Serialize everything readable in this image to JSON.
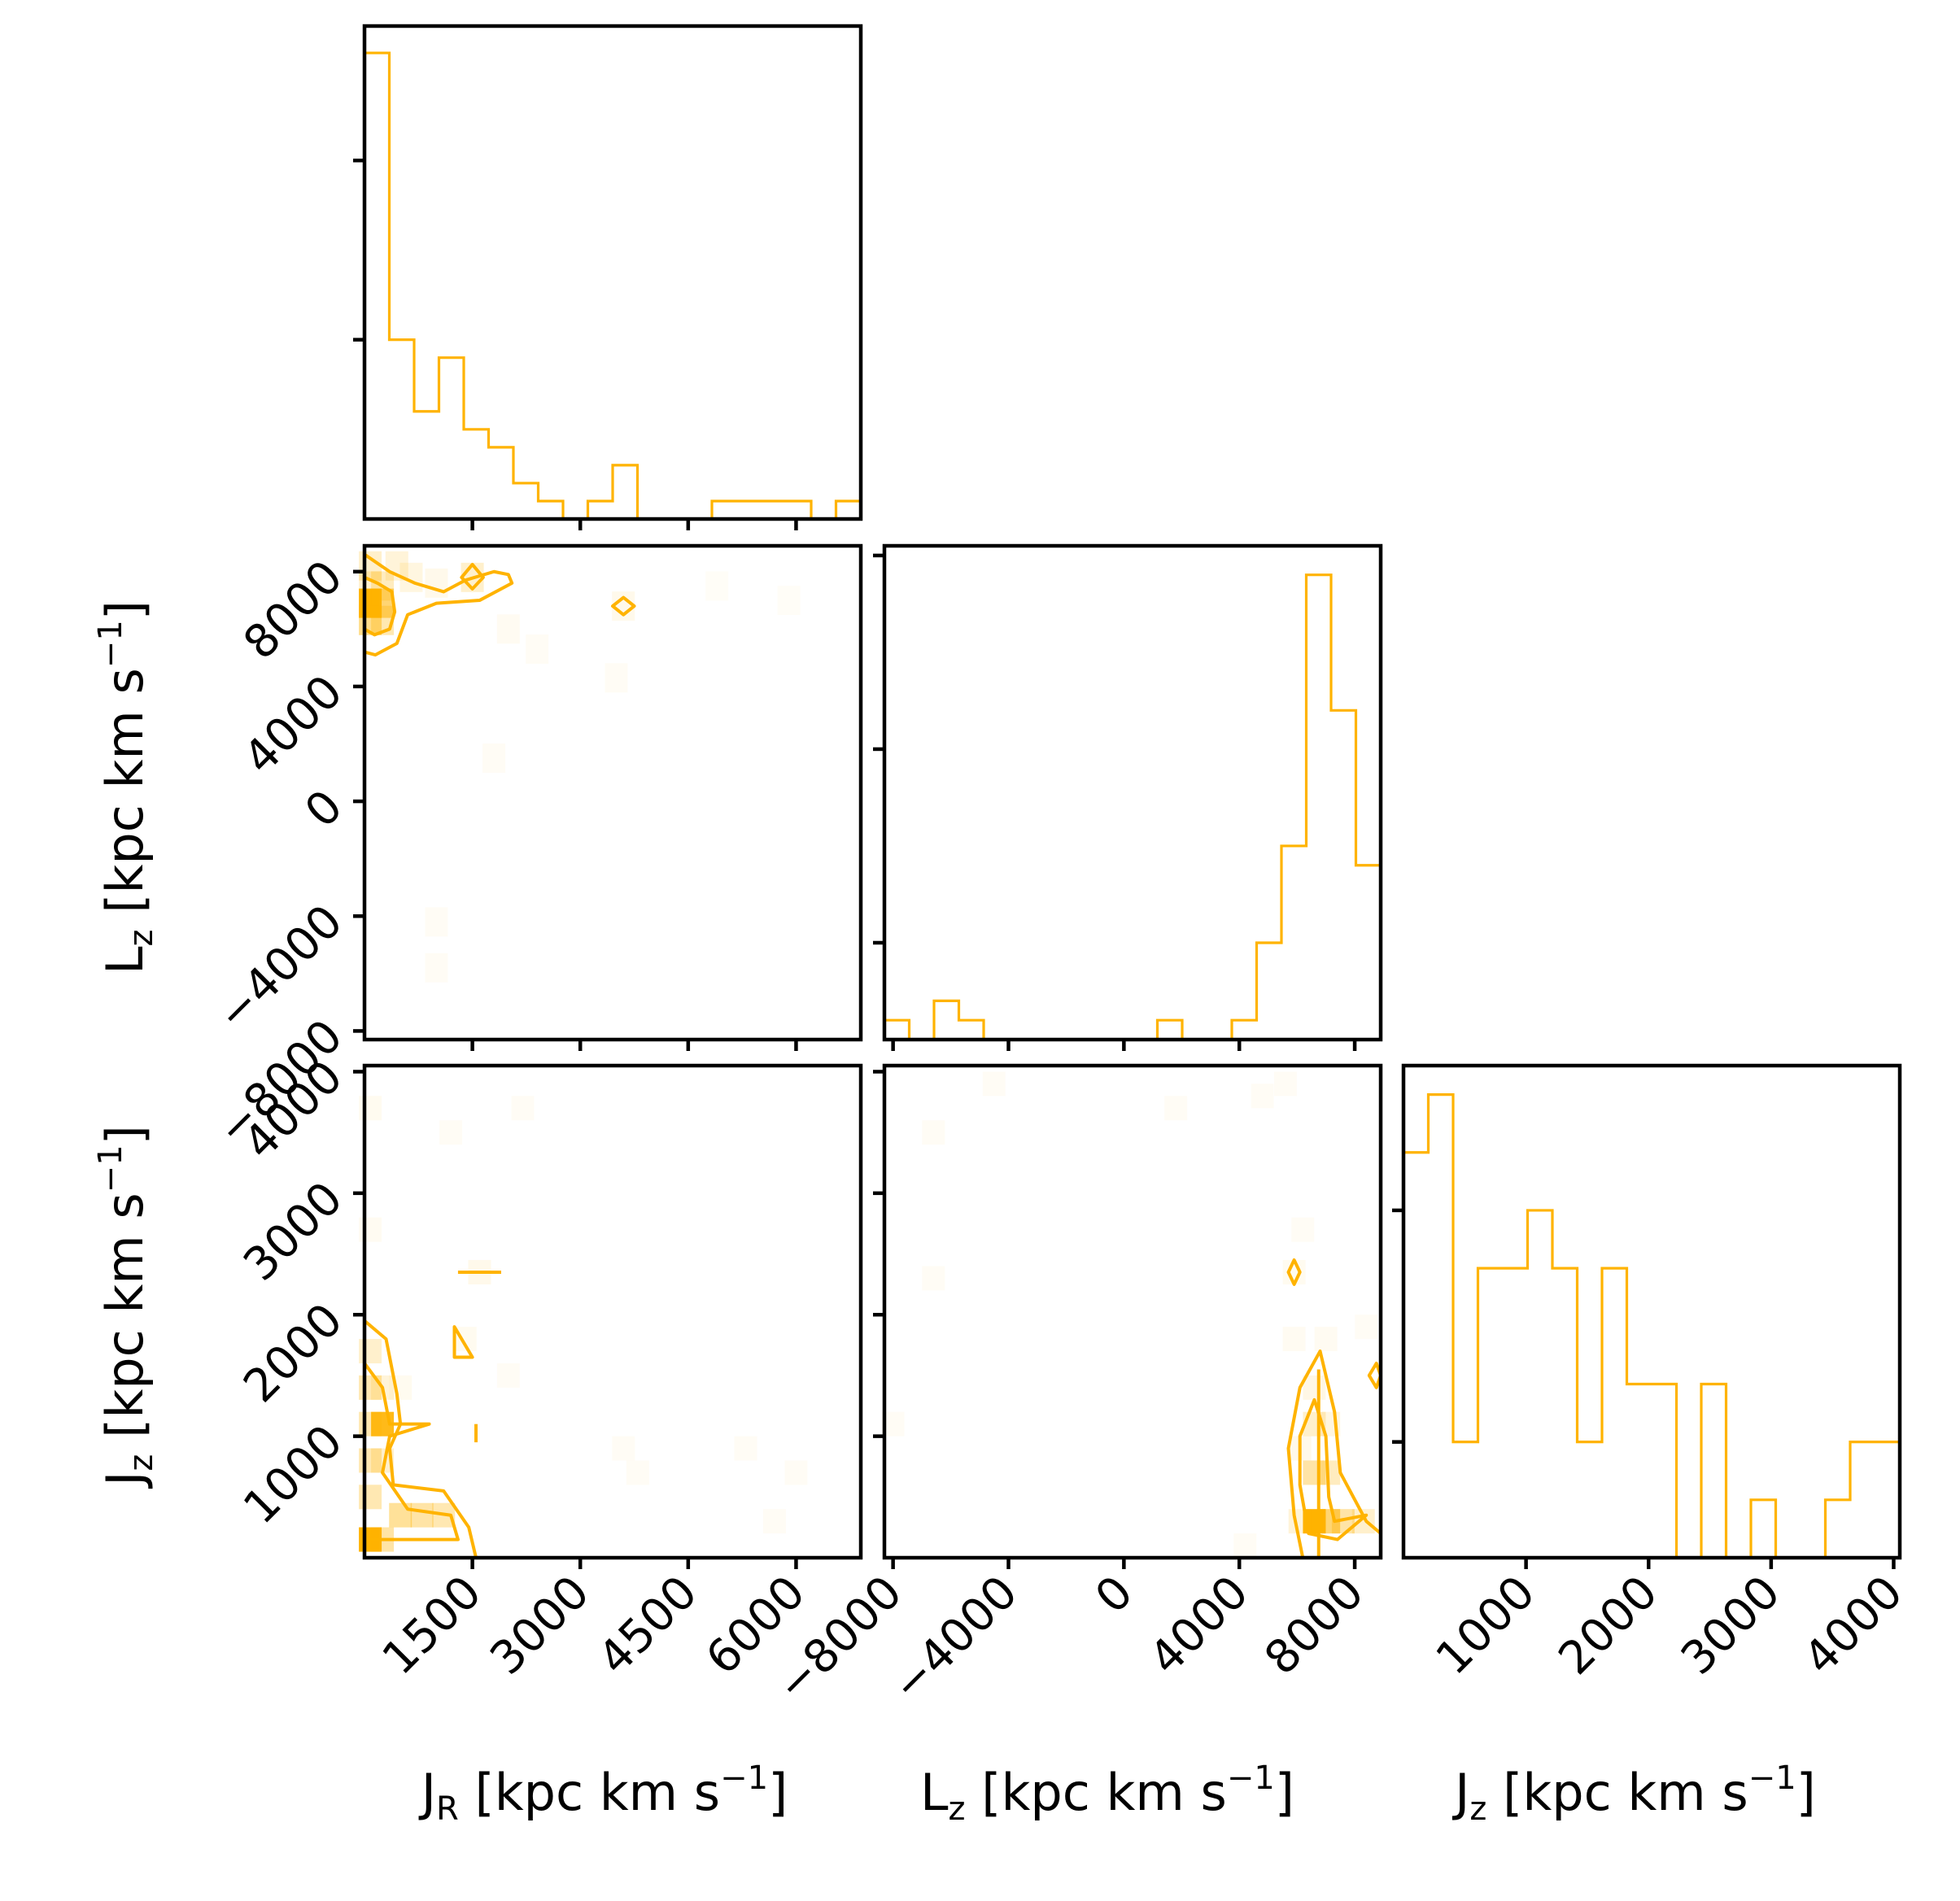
{
  "colors": {
    "series": "#ffb300",
    "axis": "#000000",
    "background": "#ffffff"
  },
  "chart_data": [
    {
      "type": "histogram",
      "variable": "J_R",
      "xlim": [
        0,
        6900
      ],
      "bin_edges": [
        0,
        345,
        690,
        1035,
        1380,
        1725,
        2070,
        2415,
        2760,
        3105,
        3450,
        3795,
        4140,
        4485,
        4830,
        5175,
        5520,
        5865,
        6210,
        6555,
        6900
      ],
      "counts": [
        26,
        10,
        6,
        9,
        5,
        4,
        2,
        1,
        0,
        1,
        3,
        0,
        0,
        0,
        1,
        1,
        1,
        1,
        0,
        1
      ],
      "ylim": [
        0,
        27.5
      ]
    },
    {
      "type": "histogram",
      "variable": "L_z",
      "xlim": [
        -8300,
        8900
      ],
      "bin_edges": [
        -8300,
        -7440,
        -6580,
        -5720,
        -4860,
        -4000,
        -3140,
        -2280,
        -1420,
        -560,
        300,
        1160,
        2020,
        2880,
        3740,
        4600,
        5460,
        6320,
        7180,
        8040,
        8900
      ],
      "counts": [
        1,
        0,
        2,
        1,
        0,
        0,
        0,
        0,
        0,
        0,
        0,
        1,
        0,
        0,
        1,
        5,
        10,
        24,
        17,
        9
      ],
      "ylim": [
        0,
        25.5
      ]
    },
    {
      "type": "histogram",
      "variable": "J_z",
      "xlim": [
        0,
        4050
      ],
      "bin_edges": [
        0,
        202.5,
        405,
        607.5,
        810,
        1012.5,
        1215,
        1417.5,
        1620,
        1822.5,
        2025,
        2227.5,
        2430,
        2632.5,
        2835,
        3037.5,
        3240,
        3442.5,
        3645,
        3847.5,
        4050
      ],
      "counts": [
        7,
        8,
        2,
        5,
        5,
        6,
        5,
        2,
        5,
        3,
        3,
        0,
        3,
        0,
        1,
        0,
        0,
        1,
        2,
        2
      ],
      "ylim": [
        0,
        8.5
      ]
    },
    {
      "type": "heatmap",
      "x": "J_R",
      "y": "L_z",
      "xlim": [
        0,
        6900
      ],
      "ylim": [
        -8300,
        8900
      ],
      "peak": {
        "x": 150,
        "y": 6900
      },
      "secondary_peaks": [
        {
          "x": 1500,
          "y": 7800
        },
        {
          "x": 3600,
          "y": 6800
        }
      ]
    },
    {
      "type": "heatmap",
      "x": "J_R",
      "y": "J_z",
      "xlim": [
        0,
        6900
      ],
      "ylim": [
        0,
        4050
      ],
      "peak": {
        "x": 150,
        "y": 150
      },
      "secondary_peaks": [
        {
          "x": 500,
          "y": 1100
        },
        {
          "x": 1400,
          "y": 1800
        }
      ]
    },
    {
      "type": "heatmap",
      "x": "L_z",
      "y": "J_z",
      "xlim": [
        -8300,
        8900
      ],
      "ylim": [
        0,
        4050
      ],
      "peak": {
        "x": 6600,
        "y": 300
      },
      "secondary_peaks": [
        {
          "x": 5900,
          "y": 2350
        },
        {
          "x": 8700,
          "y": 1500
        }
      ]
    }
  ],
  "axes": {
    "jr": {
      "label_main": "J",
      "label_sub": "R",
      "unit_open": " [kpc km s",
      "unit_sup": "−1",
      "unit_close": "]",
      "ticks": [
        "1500",
        "3000",
        "4500",
        "6000"
      ]
    },
    "lz": {
      "label_main": "L",
      "label_sub": "z",
      "unit_open": " [kpc km s",
      "unit_sup": "−1",
      "unit_close": "]",
      "ticks": [
        "−8000",
        "−4000",
        "0",
        "4000",
        "8000"
      ]
    },
    "jz": {
      "label_main": "J",
      "label_sub": "z",
      "unit_open": " [kpc km s",
      "unit_sup": "−1",
      "unit_close": "]",
      "ticks": [
        "1000",
        "2000",
        "3000",
        "4000"
      ]
    }
  }
}
